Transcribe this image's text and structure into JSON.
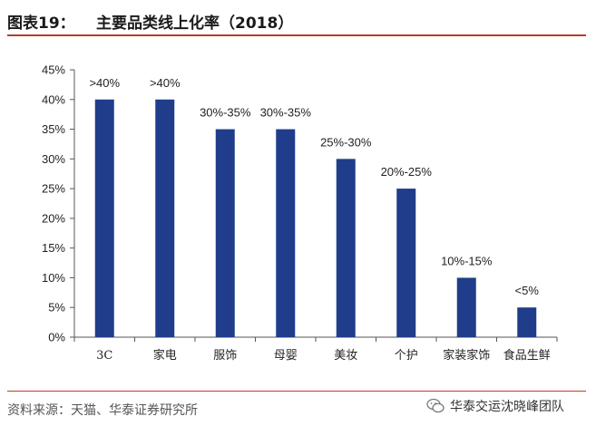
{
  "header": {
    "figure_label": "图表19：",
    "title": "主要品类线上化率（2018）"
  },
  "footer": {
    "source": "资料来源：天猫、华泰证券研究所",
    "brand_text": "华泰交运沈晓峰团队",
    "brand_icon": "wechat-icon"
  },
  "colors": {
    "bar": "#1f3d8a",
    "rule": "#b5402a"
  },
  "chart_data": {
    "type": "bar",
    "categories": [
      "3C",
      "家电",
      "服饰",
      "母婴",
      "美妆",
      "个护",
      "家装家饰",
      "食品生鲜"
    ],
    "values": [
      40,
      40,
      35,
      35,
      30,
      25,
      10,
      5
    ],
    "data_labels": [
      ">40%",
      ">40%",
      "30%-35%",
      "30%-35%",
      "25%-30%",
      "20%-25%",
      "10%-15%",
      "<5%"
    ],
    "ylim": [
      0,
      45
    ],
    "yticks": [
      "0%",
      "5%",
      "10%",
      "15%",
      "20%",
      "25%",
      "30%",
      "35%",
      "40%",
      "45%"
    ],
    "grid": false,
    "title": "",
    "xlabel": "",
    "ylabel": ""
  }
}
